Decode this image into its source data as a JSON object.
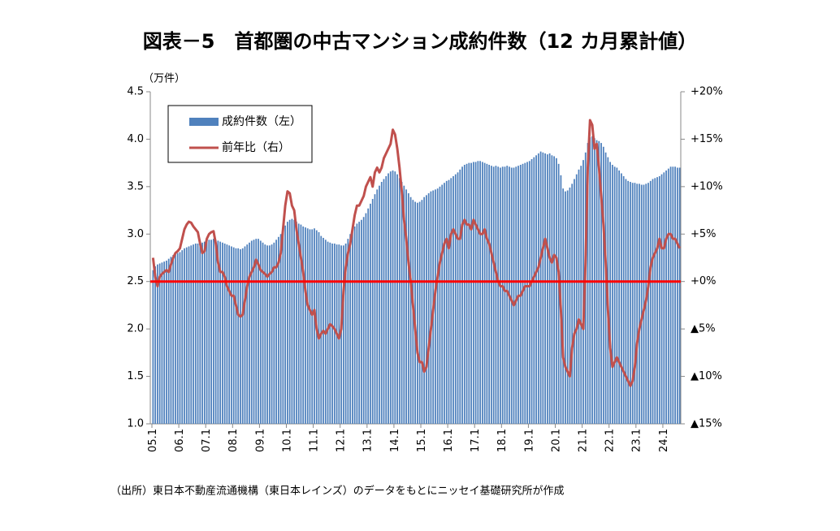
{
  "chart_data": {
    "type": "bar_line",
    "title": "図表－5　首都圏の中古マンション成約件数（12 カ月累計値）",
    "y_unit_label": "（万件）",
    "source": "（出所）東日本不動産流通機構（東日本レインズ）のデータをもとにニッセイ基礎研究所が作成",
    "categories": [
      "05.1",
      null,
      null,
      null,
      null,
      null,
      null,
      null,
      null,
      null,
      null,
      null,
      "06.1",
      null,
      null,
      null,
      null,
      null,
      null,
      null,
      null,
      null,
      null,
      null,
      "07.1",
      null,
      null,
      null,
      null,
      null,
      null,
      null,
      null,
      null,
      null,
      null,
      "08.1",
      null,
      null,
      null,
      null,
      null,
      null,
      null,
      null,
      null,
      null,
      null,
      "09.1",
      null,
      null,
      null,
      null,
      null,
      null,
      null,
      null,
      null,
      null,
      null,
      "10.1",
      null,
      null,
      null,
      null,
      null,
      null,
      null,
      null,
      null,
      null,
      null,
      "11.1",
      null,
      null,
      null,
      null,
      null,
      null,
      null,
      null,
      null,
      null,
      null,
      "12.1",
      null,
      null,
      null,
      null,
      null,
      null,
      null,
      null,
      null,
      null,
      null,
      "13.1",
      null,
      null,
      null,
      null,
      null,
      null,
      null,
      null,
      null,
      null,
      null,
      "14.1",
      null,
      null,
      null,
      null,
      null,
      null,
      null,
      null,
      null,
      null,
      null,
      "15.1",
      null,
      null,
      null,
      null,
      null,
      null,
      null,
      null,
      null,
      null,
      null,
      "16.1",
      null,
      null,
      null,
      null,
      null,
      null,
      null,
      null,
      null,
      null,
      null,
      "17.1",
      null,
      null,
      null,
      null,
      null,
      null,
      null,
      null,
      null,
      null,
      null,
      "18.1",
      null,
      null,
      null,
      null,
      null,
      null,
      null,
      null,
      null,
      null,
      null,
      "19.1",
      null,
      null,
      null,
      null,
      null,
      null,
      null,
      null,
      null,
      null,
      null,
      "20.1",
      null,
      null,
      null,
      null,
      null,
      null,
      null,
      null,
      null,
      null,
      null,
      "21.1",
      null,
      null,
      null,
      null,
      null,
      null,
      null,
      null,
      null,
      null,
      null,
      "22.1",
      null,
      null,
      null,
      null,
      null,
      null,
      null,
      null,
      null,
      null,
      null,
      "23.1",
      null,
      null,
      null,
      null,
      null,
      null,
      null,
      null,
      null,
      null,
      null,
      "24.1",
      null,
      null,
      null,
      null,
      null,
      null,
      null
    ],
    "series": [
      {
        "name": "成約件数（左）",
        "type": "bar",
        "axis": "y",
        "color": "#4f81bd",
        "values": [
          2.62,
          2.66,
          2.68,
          2.69,
          2.7,
          2.71,
          2.72,
          2.74,
          2.76,
          2.78,
          2.79,
          2.8,
          2.81,
          2.83,
          2.85,
          2.86,
          2.87,
          2.88,
          2.89,
          2.9,
          2.9,
          2.91,
          2.91,
          2.92,
          2.93,
          2.94,
          2.94,
          2.95,
          2.94,
          2.93,
          2.92,
          2.91,
          2.9,
          2.89,
          2.88,
          2.87,
          2.86,
          2.85,
          2.85,
          2.84,
          2.85,
          2.87,
          2.89,
          2.91,
          2.93,
          2.94,
          2.95,
          2.95,
          2.93,
          2.91,
          2.89,
          2.88,
          2.88,
          2.89,
          2.91,
          2.94,
          2.97,
          3.0,
          3.04,
          3.09,
          3.13,
          3.15,
          3.16,
          3.15,
          3.13,
          3.11,
          3.1,
          3.08,
          3.07,
          3.06,
          3.05,
          3.05,
          3.06,
          3.04,
          3.02,
          2.98,
          2.96,
          2.94,
          2.92,
          2.91,
          2.9,
          2.9,
          2.89,
          2.89,
          2.88,
          2.88,
          2.9,
          2.95,
          3.0,
          3.05,
          3.08,
          3.11,
          3.13,
          3.15,
          3.18,
          3.22,
          3.27,
          3.32,
          3.37,
          3.42,
          3.47,
          3.51,
          3.55,
          3.58,
          3.61,
          3.64,
          3.66,
          3.67,
          3.66,
          3.63,
          3.59,
          3.55,
          3.51,
          3.47,
          3.43,
          3.39,
          3.36,
          3.34,
          3.33,
          3.34,
          3.36,
          3.39,
          3.41,
          3.43,
          3.45,
          3.46,
          3.47,
          3.48,
          3.5,
          3.52,
          3.54,
          3.56,
          3.57,
          3.59,
          3.61,
          3.63,
          3.65,
          3.68,
          3.71,
          3.73,
          3.74,
          3.75,
          3.75,
          3.76,
          3.76,
          3.77,
          3.77,
          3.76,
          3.75,
          3.74,
          3.73,
          3.72,
          3.71,
          3.72,
          3.71,
          3.7,
          3.71,
          3.71,
          3.72,
          3.71,
          3.7,
          3.7,
          3.71,
          3.72,
          3.73,
          3.74,
          3.75,
          3.76,
          3.77,
          3.79,
          3.81,
          3.83,
          3.85,
          3.87,
          3.86,
          3.85,
          3.84,
          3.85,
          3.83,
          3.82,
          3.8,
          3.74,
          3.62,
          3.48,
          3.45,
          3.46,
          3.49,
          3.53,
          3.58,
          3.63,
          3.68,
          3.72,
          3.78,
          3.86,
          3.96,
          4.02,
          4.03,
          4.01,
          3.99,
          3.98,
          3.96,
          3.92,
          3.86,
          3.81,
          3.76,
          3.73,
          3.71,
          3.7,
          3.67,
          3.64,
          3.61,
          3.58,
          3.56,
          3.55,
          3.54,
          3.54,
          3.53,
          3.53,
          3.52,
          3.52,
          3.53,
          3.54,
          3.56,
          3.58,
          3.59,
          3.6,
          3.61,
          3.63,
          3.65,
          3.67,
          3.69,
          3.71,
          3.71,
          3.71,
          3.7,
          3.7
        ]
      },
      {
        "name": "前年比（右）",
        "type": "line",
        "axis": "y2",
        "color": "#c0504d",
        "values": [
          2.5,
          0.5,
          -0.5,
          0.5,
          0.8,
          1.0,
          1.2,
          1.0,
          1.8,
          2.5,
          3.0,
          3.2,
          3.5,
          4.5,
          5.5,
          6.0,
          6.3,
          6.2,
          5.8,
          5.5,
          5.2,
          4.0,
          3.0,
          3.2,
          4.5,
          5.0,
          5.2,
          5.3,
          4.0,
          2.0,
          1.0,
          1.0,
          0.5,
          -0.5,
          -1.0,
          -1.5,
          -1.5,
          -2.5,
          -3.5,
          -3.7,
          -3.5,
          -2.0,
          -0.5,
          0.5,
          1.0,
          1.5,
          2.3,
          1.8,
          1.2,
          1.0,
          0.8,
          0.5,
          0.8,
          1.0,
          1.5,
          1.5,
          2.0,
          3.0,
          5.5,
          8.0,
          9.5,
          9.3,
          8.0,
          7.5,
          5.5,
          4.0,
          2.5,
          1.0,
          -1.0,
          -2.5,
          -3.0,
          -3.5,
          -3.0,
          -5.0,
          -6.0,
          -5.5,
          -5.2,
          -5.5,
          -5.0,
          -4.5,
          -4.7,
          -5.0,
          -5.5,
          -6.0,
          -5.0,
          -1.0,
          1.5,
          3.0,
          4.0,
          5.5,
          7.0,
          8.0,
          8.0,
          8.5,
          9.0,
          10.0,
          10.5,
          11.0,
          10.0,
          11.5,
          12.0,
          11.5,
          12.0,
          13.0,
          13.5,
          14.0,
          14.5,
          16.0,
          15.5,
          14.0,
          12.0,
          9.5,
          6.5,
          4.5,
          2.0,
          0,
          -2.5,
          -5.0,
          -7.5,
          -8.5,
          -8.5,
          -9.5,
          -9.0,
          -7.0,
          -5.0,
          -3.0,
          -1.0,
          0.5,
          2.0,
          3.0,
          4.0,
          4.5,
          3.5,
          5.0,
          5.5,
          5.0,
          4.5,
          4.5,
          6.0,
          6.5,
          6.0,
          6.0,
          5.5,
          6.5,
          6.0,
          5.5,
          5.0,
          5.0,
          5.5,
          4.5,
          4.0,
          3.0,
          2.0,
          1.0,
          0,
          -0.5,
          -0.5,
          -1.0,
          -1.0,
          -1.5,
          -2.0,
          -2.5,
          -2.0,
          -1.5,
          -1.5,
          -1.0,
          -0.5,
          -0.5,
          -0.5,
          0,
          0.5,
          1.0,
          1.5,
          2.5,
          3.5,
          4.5,
          3.5,
          2.5,
          2.0,
          2.8,
          2.5,
          1.0,
          -3.0,
          -8.0,
          -9.0,
          -9.5,
          -10.0,
          -7.0,
          -5.5,
          -5.0,
          -4.0,
          -4.5,
          -5.0,
          2.0,
          12.0,
          17.0,
          16.5,
          14.0,
          14.5,
          12.0,
          9.0,
          6.0,
          2.0,
          -3.0,
          -7.0,
          -9.0,
          -8.5,
          -8.0,
          -8.5,
          -9.0,
          -9.5,
          -10.0,
          -10.5,
          -11.0,
          -10.5,
          -9.0,
          -6.5,
          -5.0,
          -4.0,
          -3.0,
          -2.0,
          -0.5,
          1.5,
          2.5,
          3.0,
          3.5,
          4.5,
          3.5,
          3.5,
          4.5,
          5.0,
          5.0,
          4.5,
          4.5,
          4.0,
          3.5
        ]
      }
    ],
    "ylim": [
      1.0,
      4.5
    ],
    "yticks": [
      {
        "value": 1,
        "label": "1.0"
      },
      1.5,
      {
        "value": 2,
        "label": "2.0"
      },
      2.5,
      {
        "value": 3,
        "label": "3.0"
      },
      3.5,
      {
        "value": 4,
        "label": "4.0"
      },
      4.5
    ],
    "y2lim": [
      -15,
      20
    ],
    "y2ticks": [
      {
        "value": -15,
        "label": "▲15%"
      },
      {
        "value": -10,
        "label": "▲10%"
      },
      {
        "value": -5,
        "label": "▲5%"
      },
      {
        "value": 0,
        "label": "+0%"
      },
      {
        "value": 5,
        "label": "+5%"
      },
      {
        "value": 10,
        "label": "+10%"
      },
      {
        "value": 15,
        "label": "+15%"
      },
      {
        "value": 20,
        "label": "+20%"
      }
    ],
    "reference_line": {
      "axis": "y2",
      "value": 0,
      "color": "#ff0000"
    },
    "grid": false,
    "legend": "top-left"
  }
}
